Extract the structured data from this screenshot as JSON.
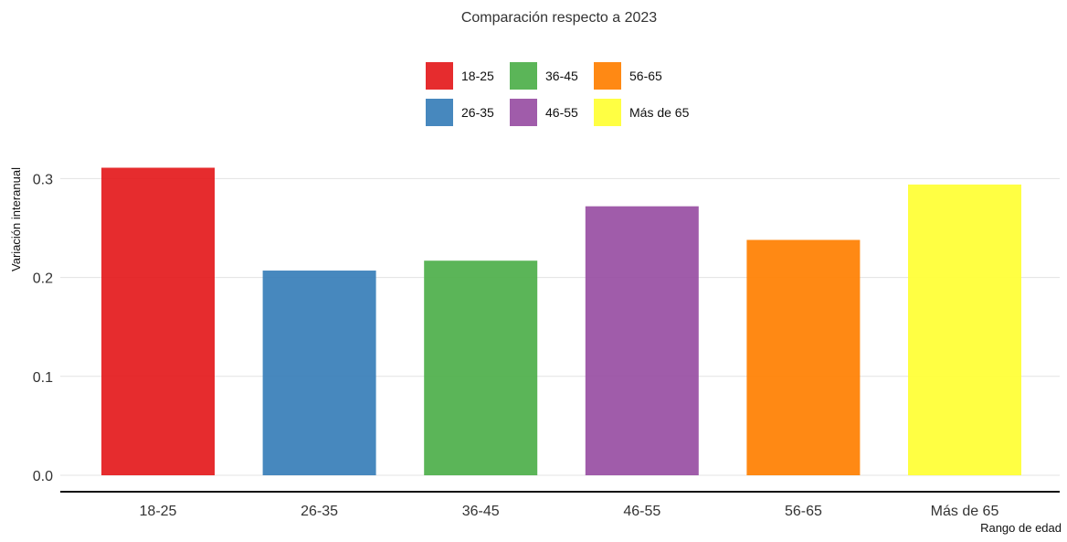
{
  "chart_data": {
    "type": "bar",
    "title": "Comparación respecto a 2023",
    "xlabel": "Rango de edad",
    "ylabel": "Variación interanual",
    "categories": [
      "18-25",
      "26-35",
      "36-45",
      "46-55",
      "56-65",
      "Más de 65"
    ],
    "values": [
      0.311,
      0.207,
      0.217,
      0.272,
      0.238,
      0.294
    ],
    "colors": [
      "#e41a1c",
      "#377eb8",
      "#4daf4a",
      "#984ea3",
      "#ff7f00",
      "#ffff33"
    ],
    "ylim": [
      0,
      0.33
    ],
    "yticks": [
      0.0,
      0.1,
      0.2,
      0.3
    ],
    "ytick_labels": [
      "0.0",
      "0.1",
      "0.2",
      "0.3"
    ],
    "grid": true,
    "legend": {
      "position": "top",
      "entries": [
        "18-25",
        "26-35",
        "36-45",
        "46-55",
        "56-65",
        "Más de 65"
      ]
    }
  }
}
